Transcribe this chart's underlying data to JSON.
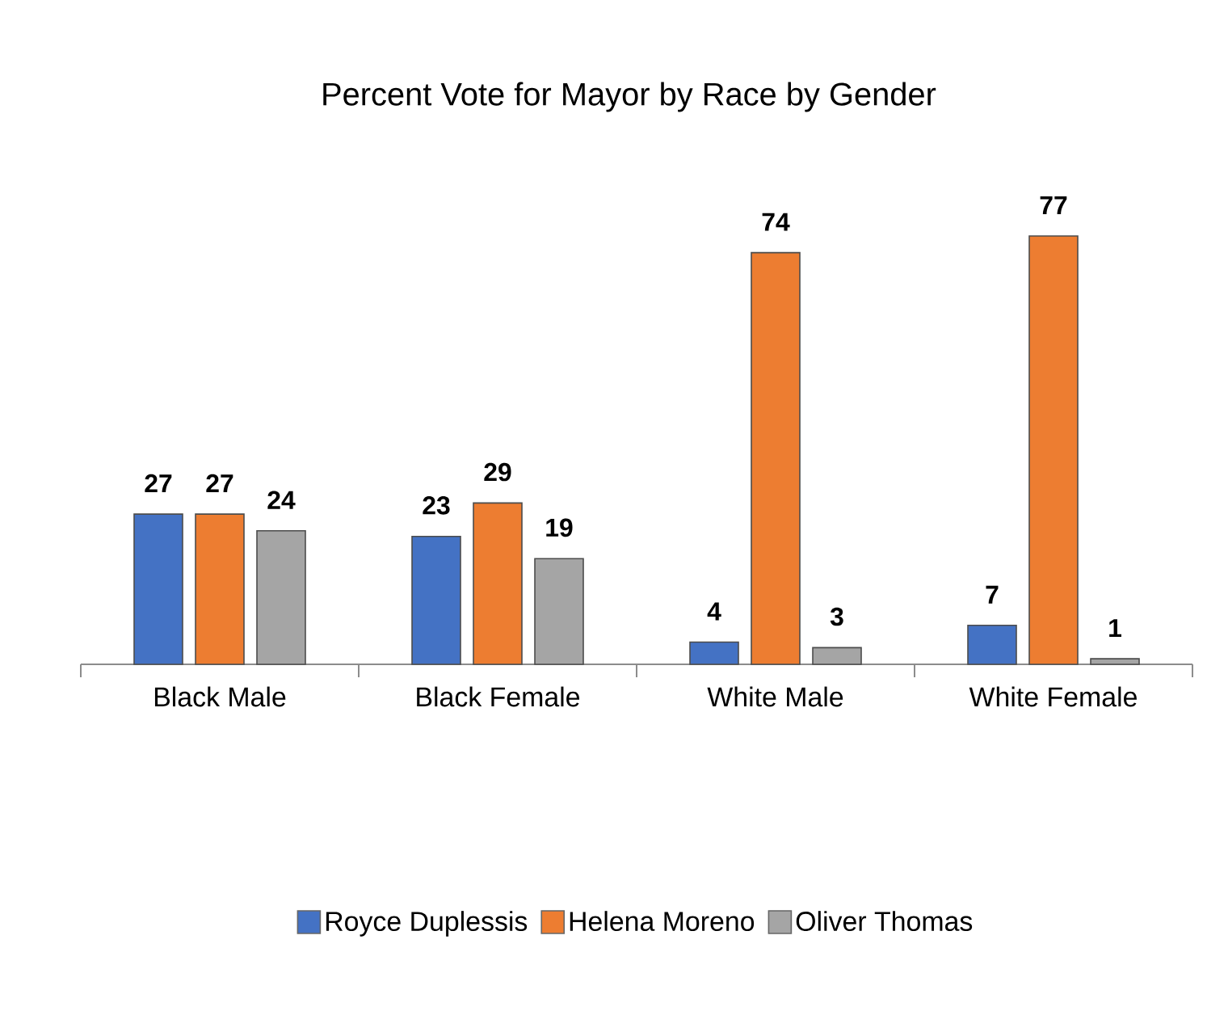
{
  "chart_data": {
    "type": "bar",
    "title": "Percent Vote for Mayor by Race by Gender",
    "categories": [
      "Black Male",
      "Black Female",
      "White Male",
      "White Female"
    ],
    "series": [
      {
        "name": "Royce Duplessis",
        "color": "#4472c4",
        "values": [
          27,
          23,
          4,
          7
        ]
      },
      {
        "name": "Helena Moreno",
        "color": "#ed7d31",
        "values": [
          27,
          29,
          74,
          77
        ]
      },
      {
        "name": "Oliver Thomas",
        "color": "#a5a5a5",
        "values": [
          24,
          19,
          3,
          1
        ]
      }
    ],
    "data_labels": true,
    "legend": "bottom"
  }
}
